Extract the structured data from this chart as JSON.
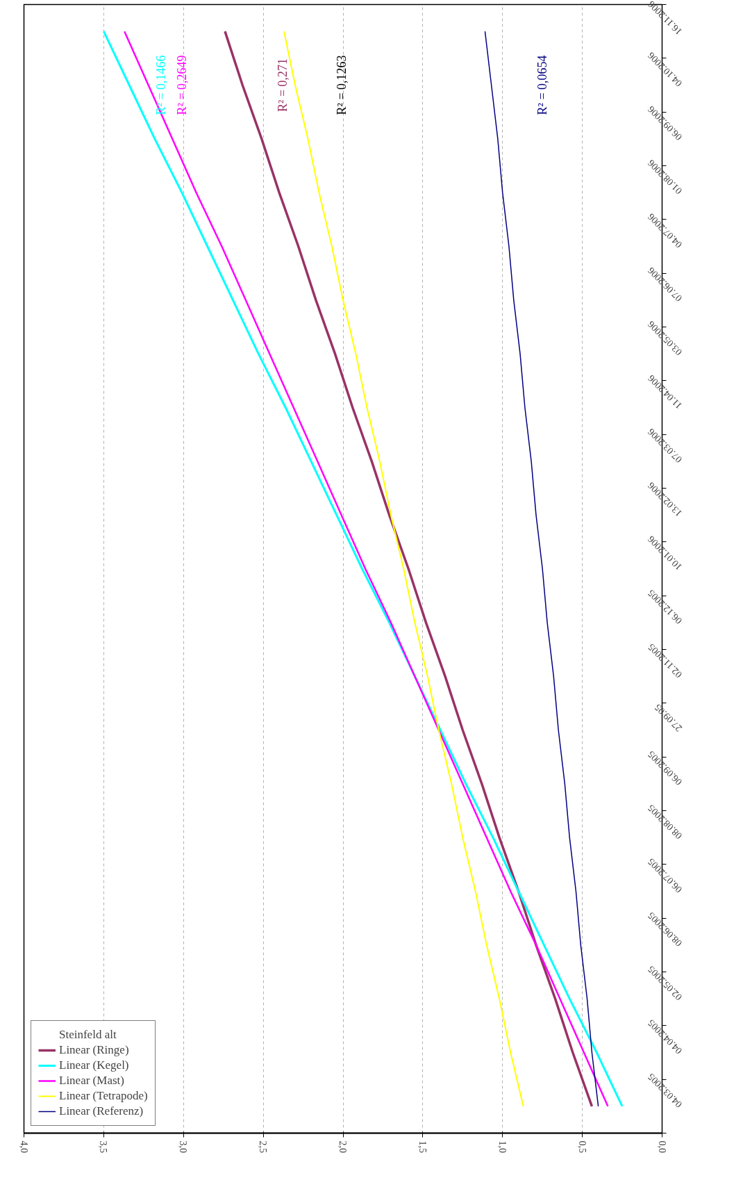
{
  "chart_data": {
    "type": "line",
    "orientation": "horizontal",
    "categories": [
      "16.11.2006",
      "04.10.2006",
      "06.09.2006",
      "01.08.2006",
      "04.07.2006",
      "07.06.2006",
      "03.05.2006",
      "11.04.2006",
      "07.03.2006",
      "13.02.2006",
      "10.01.2006",
      "06.12.2005",
      "02.11.2005",
      "27.09.05",
      "06.09.2005",
      "08.08.2005",
      "06.07.2005",
      "08.06.2005",
      "02.05.2005",
      "04.04.2005",
      "04.03.2005"
    ],
    "series": [
      {
        "name": "Steinfeld alt",
        "values": [
          null,
          null,
          null,
          null,
          null,
          null,
          null,
          null,
          null,
          null,
          null,
          null,
          null,
          null,
          null,
          null,
          null,
          null,
          null,
          null,
          null
        ]
      },
      {
        "name": "Linear (Ringe)",
        "color": "#993366",
        "values": [
          2.74,
          2.63,
          2.51,
          2.4,
          2.28,
          2.17,
          2.05,
          1.94,
          1.82,
          1.71,
          1.59,
          1.48,
          1.36,
          1.25,
          1.13,
          1.02,
          0.9,
          0.79,
          0.67,
          0.56,
          0.44
        ]
      },
      {
        "name": "Linear (Kegel)",
        "color": "#00ffff",
        "values": [
          3.5,
          3.34,
          3.18,
          3.01,
          2.85,
          2.69,
          2.53,
          2.36,
          2.2,
          2.04,
          1.88,
          1.71,
          1.55,
          1.39,
          1.23,
          1.06,
          0.9,
          0.74,
          0.58,
          0.41,
          0.25
        ]
      },
      {
        "name": "Linear (Mast)",
        "color": "#ff00ff",
        "values": [
          3.37,
          3.22,
          3.07,
          2.92,
          2.76,
          2.61,
          2.46,
          2.31,
          2.16,
          2.01,
          1.86,
          1.7,
          1.55,
          1.4,
          1.25,
          1.1,
          0.95,
          0.79,
          0.64,
          0.49,
          0.34
        ]
      },
      {
        "name": "Linear (Tetrapode)",
        "color": "#ffff00",
        "values": [
          2.37,
          2.3,
          2.22,
          2.15,
          2.07,
          2.0,
          1.92,
          1.85,
          1.77,
          1.7,
          1.62,
          1.55,
          1.47,
          1.4,
          1.32,
          1.25,
          1.17,
          1.1,
          1.02,
          0.95,
          0.87
        ]
      },
      {
        "name": "Linear (Referenz)",
        "color": "#000080",
        "values": [
          1.11,
          1.07,
          1.03,
          1.0,
          0.96,
          0.93,
          0.89,
          0.86,
          0.82,
          0.79,
          0.75,
          0.72,
          0.68,
          0.65,
          0.61,
          0.58,
          0.54,
          0.51,
          0.47,
          0.44,
          0.4
        ]
      }
    ],
    "xlim": [
      4.0,
      0.0
    ],
    "xticks": [
      {
        "value": 0.0,
        "label": "0,0"
      },
      {
        "value": 0.5,
        "label": "0,5"
      },
      {
        "value": 1.0,
        "label": "1,0"
      },
      {
        "value": 1.5,
        "label": "1,5"
      },
      {
        "value": 2.0,
        "label": "2,0"
      },
      {
        "value": 2.5,
        "label": "2,5"
      },
      {
        "value": 3.0,
        "label": "3,0"
      },
      {
        "value": 3.5,
        "label": "3,5"
      },
      {
        "value": 4.0,
        "label": "4,0"
      }
    ],
    "grid": "x",
    "legend": "bottom left",
    "marker": "none",
    "line_style": "solid",
    "annotations": [
      "R² = 0,271",
      "R² = 0,1466",
      "R² = 0,2649",
      "R² = 0,1263",
      "R² = 0,0654"
    ]
  }
}
